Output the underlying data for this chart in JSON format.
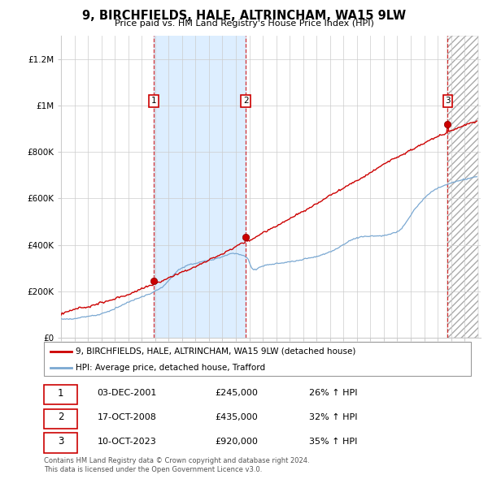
{
  "title": "9, BIRCHFIELDS, HALE, ALTRINCHAM, WA15 9LW",
  "subtitle": "Price paid vs. HM Land Registry's House Price Index (HPI)",
  "ylim": [
    0,
    1300000
  ],
  "yticks": [
    0,
    200000,
    400000,
    600000,
    800000,
    1000000,
    1200000
  ],
  "ytick_labels": [
    "£0",
    "£200K",
    "£400K",
    "£600K",
    "£800K",
    "£1M",
    "£1.2M"
  ],
  "sale_prices": [
    245000,
    435000,
    920000
  ],
  "sale_labels": [
    "1",
    "2",
    "3"
  ],
  "sale_pct_hpi": [
    "26%",
    "32%",
    "35%"
  ],
  "sale_date_labels": [
    "03-DEC-2001",
    "17-OCT-2008",
    "10-OCT-2023"
  ],
  "sale_price_labels": [
    "£245,000",
    "£435,000",
    "£920,000"
  ],
  "hpi_arrow": "↑",
  "legend_property": "9, BIRCHFIELDS, HALE, ALTRINCHAM, WA15 9LW (detached house)",
  "legend_hpi": "HPI: Average price, detached house, Trafford",
  "property_color": "#cc0000",
  "hpi_color": "#7aa8d2",
  "footnote": "Contains HM Land Registry data © Crown copyright and database right 2024.\nThis data is licensed under the Open Government Licence v3.0.",
  "shaded_color": "#ddeeff",
  "hatch_color": "#bbbbbb"
}
